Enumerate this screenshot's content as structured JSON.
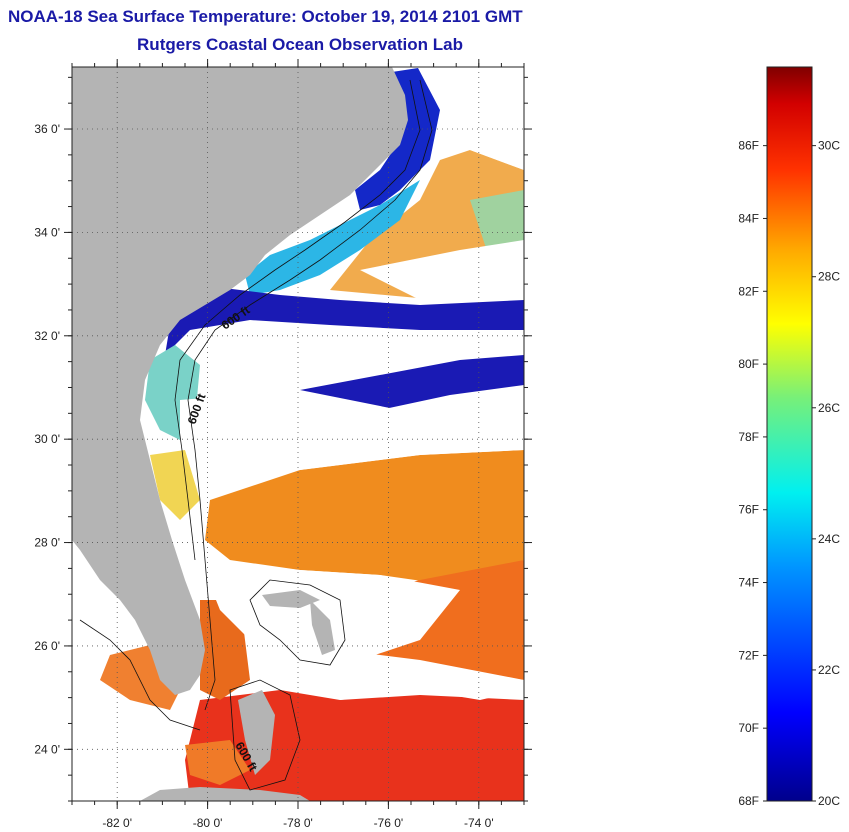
{
  "title": "NOAA-18 Sea Surface Temperature:  October 19, 2014 2101 GMT",
  "subtitle": "Rutgers Coastal Ocean Observation Lab",
  "map": {
    "lat_range": [
      23,
      37.2
    ],
    "lon_range": [
      -83,
      -73
    ],
    "lat_ticks": [
      {
        "value": 24,
        "label": "24 0'"
      },
      {
        "value": 26,
        "label": "26 0'"
      },
      {
        "value": 28,
        "label": "28 0'"
      },
      {
        "value": 30,
        "label": "30 0'"
      },
      {
        "value": 32,
        "label": "32 0'"
      },
      {
        "value": 34,
        "label": "34 0'"
      },
      {
        "value": 36,
        "label": "36 0'"
      }
    ],
    "lon_ticks": [
      {
        "value": -82,
        "label": "-82 0'"
      },
      {
        "value": -80,
        "label": "-80 0'"
      },
      {
        "value": -78,
        "label": "-78 0'"
      },
      {
        "value": -76,
        "label": "-76 0'"
      },
      {
        "value": -74,
        "label": "-74 0'"
      }
    ],
    "isobath_labels": [
      "600 ft",
      "600 ft",
      "600 ft"
    ],
    "colors": {
      "land": "#b4b4b4",
      "cloud": "#ffffff",
      "warm": "#e8321c",
      "orange": "#f08c1e",
      "cold": "#1a1ab4",
      "cyan": "#28d2f0"
    }
  },
  "colorbar": {
    "range_c": [
      20,
      31.2
    ],
    "fahrenheit_labels": [
      {
        "value": 86,
        "label": "86F"
      },
      {
        "value": 84,
        "label": "84F"
      },
      {
        "value": 82,
        "label": "82F"
      },
      {
        "value": 80,
        "label": "80F"
      },
      {
        "value": 78,
        "label": "78F"
      },
      {
        "value": 76,
        "label": "76F"
      },
      {
        "value": 74,
        "label": "74F"
      },
      {
        "value": 72,
        "label": "72F"
      },
      {
        "value": 70,
        "label": "70F"
      },
      {
        "value": 68,
        "label": "68F"
      }
    ],
    "celsius_labels": [
      {
        "value": 30,
        "label": "30C"
      },
      {
        "value": 28,
        "label": "28C"
      },
      {
        "value": 26,
        "label": "26C"
      },
      {
        "value": 24,
        "label": "24C"
      },
      {
        "value": 22,
        "label": "22C"
      },
      {
        "value": 20,
        "label": "20C"
      }
    ]
  }
}
